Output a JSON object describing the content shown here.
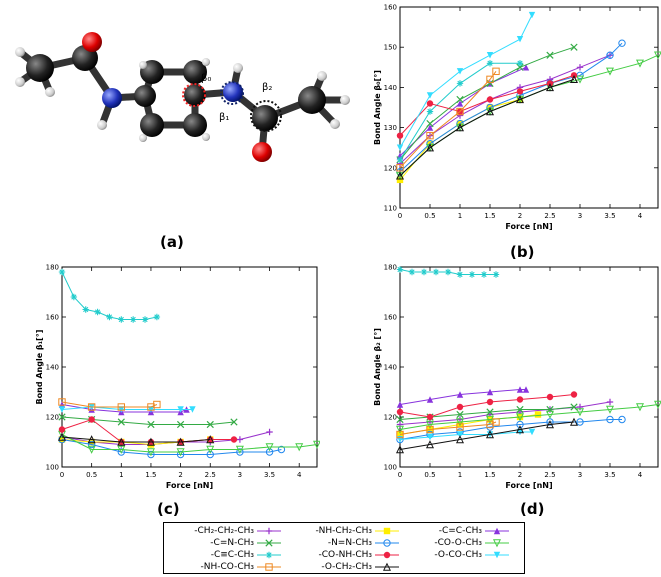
{
  "figure": {
    "molecule": {
      "labels": {
        "b0": "β₀",
        "b1": "β₁",
        "b2": "β₂"
      }
    },
    "panel_labels": [
      "(a)",
      "(b)",
      "(c)",
      "(d)"
    ]
  },
  "legend": {
    "entries": [
      {
        "label": "-CH₂-CH₂-CH₃",
        "color": "#9933cc",
        "marker": "plus"
      },
      {
        "label": "-NH-CH₂-CH₃",
        "color": "#ffee00",
        "marker": "square-filled"
      },
      {
        "label": "-C=C-CH₃",
        "color": "#8833dd",
        "marker": "triangle-filled"
      },
      {
        "label": "-C=N-CH₃",
        "color": "#33aa44",
        "marker": "x"
      },
      {
        "label": "-N=N-CH₃",
        "color": "#2288ee",
        "marker": "circle-open"
      },
      {
        "label": "-CO-O-CH₃",
        "color": "#44cc44",
        "marker": "triangle-down-open"
      },
      {
        "label": "-C≡C-CH₃",
        "color": "#22cccc",
        "marker": "star"
      },
      {
        "label": "-CO-NH-CH₃",
        "color": "#ee2244",
        "marker": "circle-filled"
      },
      {
        "label": "-O-CO-CH₃",
        "color": "#33ddff",
        "marker": "triangle-down-filled"
      },
      {
        "label": "-NH-CO-CH₃",
        "color": "#ee8822",
        "marker": "square-open"
      },
      {
        "label": "-O-CH₂-CH₃",
        "color": "#111111",
        "marker": "triangle-open"
      }
    ]
  },
  "chart_data": [
    {
      "type": "line",
      "panel": "(b)",
      "xlabel": "Force [nN]",
      "ylabel": "Bond Angle β₀[°]",
      "xlim": [
        0,
        4.3
      ],
      "ylim": [
        110,
        160
      ],
      "xticks": [
        0,
        0.5,
        1,
        1.5,
        2,
        2.5,
        3,
        3.5,
        4
      ],
      "yticks": [
        110,
        120,
        130,
        140,
        150,
        160
      ],
      "series": [
        {
          "name": "-CH₂-CH₂-CH₃",
          "x": [
            0,
            0.5,
            1,
            1.5,
            2,
            2.5,
            3,
            3.5
          ],
          "y": [
            121,
            128,
            133,
            137,
            140,
            142,
            145,
            148
          ]
        },
        {
          "name": "-NH-CH₂-CH₃",
          "x": [
            0,
            0.5,
            1,
            1.5,
            2
          ],
          "y": [
            117,
            126,
            131,
            135,
            137
          ]
        },
        {
          "name": "-C=C-CH₃",
          "x": [
            0,
            0.5,
            1,
            1.5,
            2.1
          ],
          "y": [
            123,
            130,
            136,
            141,
            145
          ]
        },
        {
          "name": "-C=N-CH₃",
          "x": [
            0,
            0.5,
            1,
            1.5,
            2,
            2.5,
            2.9
          ],
          "y": [
            122,
            131,
            137,
            141,
            145,
            148,
            150
          ]
        },
        {
          "name": "-N=N-CH₃",
          "x": [
            0,
            0.5,
            1,
            1.5,
            2,
            2.5,
            3,
            3.5,
            3.7
          ],
          "y": [
            119,
            126,
            131,
            135,
            138,
            141,
            143,
            148,
            151
          ]
        },
        {
          "name": "-CO-O-CH₃",
          "x": [
            0,
            0.5,
            1,
            1.5,
            2,
            2.5,
            3,
            3.5,
            4,
            4.3
          ],
          "y": [
            118,
            125,
            130,
            134,
            137,
            140,
            142,
            144,
            146,
            148
          ]
        },
        {
          "name": "-C≡C-CH₃",
          "x": [
            0,
            0.5,
            1,
            1.5,
            2
          ],
          "y": [
            122,
            134,
            141,
            146,
            146
          ]
        },
        {
          "name": "-CO-NH-CH₃",
          "x": [
            0,
            0.5,
            1,
            1.5,
            2,
            2.5,
            2.9
          ],
          "y": [
            128,
            136,
            134,
            137,
            139,
            141,
            143
          ]
        },
        {
          "name": "-O-CO-CH₃",
          "x": [
            0,
            0.5,
            1,
            1.5,
            2,
            2.2
          ],
          "y": [
            125,
            138,
            144,
            148,
            152,
            158
          ]
        },
        {
          "name": "-NH-CO-CH₃",
          "x": [
            0,
            0.5,
            1,
            1.5,
            1.6
          ],
          "y": [
            120,
            128,
            134,
            142,
            144
          ]
        },
        {
          "name": "-O-CH₂-CH₃",
          "x": [
            0,
            0.5,
            1,
            1.5,
            2,
            2.5,
            2.9
          ],
          "y": [
            118,
            125,
            130,
            134,
            137,
            140,
            142
          ]
        }
      ]
    },
    {
      "type": "line",
      "panel": "(c)",
      "xlabel": "Force [nN]",
      "ylabel": "Bond Angle β₁[°]",
      "xlim": [
        0,
        4.3
      ],
      "ylim": [
        100,
        180
      ],
      "xticks": [
        0,
        0.5,
        1,
        1.5,
        2,
        2.5,
        3,
        3.5,
        4
      ],
      "yticks": [
        100,
        120,
        140,
        160,
        180
      ],
      "series": [
        {
          "name": "-CH₂-CH₂-CH₃",
          "x": [
            0,
            0.5,
            1,
            1.5,
            2,
            2.5,
            3,
            3.5
          ],
          "y": [
            112,
            110,
            109,
            109,
            110,
            110,
            111,
            114
          ]
        },
        {
          "name": "-NH-CH₂-CH₃",
          "x": [
            0,
            0.5,
            1,
            1.5,
            2,
            2.5
          ],
          "y": [
            111,
            110,
            110,
            109,
            110,
            111
          ]
        },
        {
          "name": "-C=C-CH₃",
          "x": [
            0,
            0.5,
            1,
            1.5,
            2,
            2.1
          ],
          "y": [
            125,
            123,
            122,
            122,
            122,
            123
          ]
        },
        {
          "name": "-C=N-CH₃",
          "x": [
            0,
            0.5,
            1,
            1.5,
            2,
            2.5,
            2.9
          ],
          "y": [
            120,
            119,
            118,
            117,
            117,
            117,
            118
          ]
        },
        {
          "name": "-N=N-CH₃",
          "x": [
            0,
            0.5,
            1,
            1.5,
            2,
            2.5,
            3,
            3.5,
            3.7
          ],
          "y": [
            111,
            109,
            106,
            105,
            105,
            105,
            106,
            106,
            107
          ]
        },
        {
          "name": "-CO-O-CH₃",
          "x": [
            0,
            0.5,
            1,
            1.5,
            2,
            2.5,
            3,
            3.5,
            4,
            4.3
          ],
          "y": [
            113,
            107,
            107,
            106,
            106,
            107,
            107,
            108,
            108,
            109
          ]
        },
        {
          "name": "-C≡C-CH₃",
          "x": [
            0,
            0.2,
            0.4,
            0.6,
            0.8,
            1,
            1.2,
            1.4,
            1.6
          ],
          "y": [
            178,
            168,
            163,
            162,
            160,
            159,
            159,
            159,
            160
          ]
        },
        {
          "name": "-CO-NH-CH₃",
          "x": [
            0,
            0.5,
            1,
            1.5,
            2,
            2.5,
            2.9
          ],
          "y": [
            115,
            119,
            110,
            110,
            110,
            111,
            111
          ]
        },
        {
          "name": "-O-CO-CH₃",
          "x": [
            0,
            0.5,
            1,
            1.5,
            2,
            2.2
          ],
          "y": [
            123,
            124,
            123,
            123,
            123,
            123
          ]
        },
        {
          "name": "-NH-CO-CH₃",
          "x": [
            0,
            0.5,
            1,
            1.5,
            1.6
          ],
          "y": [
            126,
            124,
            124,
            124,
            125
          ]
        },
        {
          "name": "-O-CH₂-CH₃",
          "x": [
            0,
            0.5,
            1,
            1.5,
            2,
            2.5
          ],
          "y": [
            112,
            111,
            110,
            110,
            110,
            111
          ]
        }
      ]
    },
    {
      "type": "line",
      "panel": "(d)",
      "xlabel": "Force [nN]",
      "ylabel": "Bond Angle β₂ [°]",
      "xlim": [
        0,
        4.3
      ],
      "ylim": [
        100,
        180
      ],
      "xticks": [
        0,
        0.5,
        1,
        1.5,
        2,
        2.5,
        3,
        3.5,
        4
      ],
      "yticks": [
        100,
        120,
        140,
        160,
        180
      ],
      "series": [
        {
          "name": "-CH₂-CH₂-CH₃",
          "x": [
            0,
            0.5,
            1,
            1.5,
            2,
            2.5,
            3,
            3.5
          ],
          "y": [
            117,
            118,
            119,
            121,
            122,
            123,
            124,
            126
          ]
        },
        {
          "name": "-NH-CH₂-CH₃",
          "x": [
            0,
            0.5,
            1,
            1.5,
            2,
            2.3
          ],
          "y": [
            113,
            115,
            117,
            119,
            120,
            121
          ]
        },
        {
          "name": "-C=C-CH₃",
          "x": [
            0,
            0.5,
            1,
            1.5,
            2,
            2.1
          ],
          "y": [
            125,
            127,
            129,
            130,
            131,
            131
          ]
        },
        {
          "name": "-C=N-CH₃",
          "x": [
            0,
            0.5,
            1,
            1.5,
            2,
            2.5,
            2.9
          ],
          "y": [
            119,
            120,
            121,
            122,
            123,
            123,
            124
          ]
        },
        {
          "name": "-N=N-CH₃",
          "x": [
            0,
            0.5,
            1,
            1.5,
            2,
            2.5,
            3,
            3.5,
            3.7
          ],
          "y": [
            111,
            113,
            114,
            116,
            117,
            118,
            118,
            119,
            119
          ]
        },
        {
          "name": "-CO-O-CH₃",
          "x": [
            0,
            0.5,
            1,
            1.5,
            2,
            2.5,
            3,
            3.5,
            4,
            4.3
          ],
          "y": [
            115,
            117,
            118,
            119,
            120,
            121,
            122,
            123,
            124,
            125
          ]
        },
        {
          "name": "-C≡C-CH₃",
          "x": [
            0,
            0.2,
            0.4,
            0.6,
            0.8,
            1,
            1.2,
            1.4,
            1.6
          ],
          "y": [
            179,
            178,
            178,
            178,
            178,
            177,
            177,
            177,
            177
          ]
        },
        {
          "name": "-CO-NH-CH₃",
          "x": [
            0,
            0.5,
            1,
            1.5,
            2,
            2.5,
            2.9
          ],
          "y": [
            122,
            120,
            124,
            126,
            127,
            128,
            129
          ]
        },
        {
          "name": "-O-CO-CH₃",
          "x": [
            0,
            0.5,
            1,
            1.5,
            2,
            2.2
          ],
          "y": [
            111,
            112,
            113,
            113,
            114,
            114
          ]
        },
        {
          "name": "-NH-CO-CH₃",
          "x": [
            0,
            0.5,
            1,
            1.5,
            1.6
          ],
          "y": [
            113,
            115,
            116,
            117,
            118
          ]
        },
        {
          "name": "-O-CH₂-CH₃",
          "x": [
            0,
            0.5,
            1,
            1.5,
            2,
            2.5,
            2.9
          ],
          "y": [
            107,
            109,
            111,
            113,
            115,
            117,
            118
          ]
        }
      ]
    }
  ]
}
